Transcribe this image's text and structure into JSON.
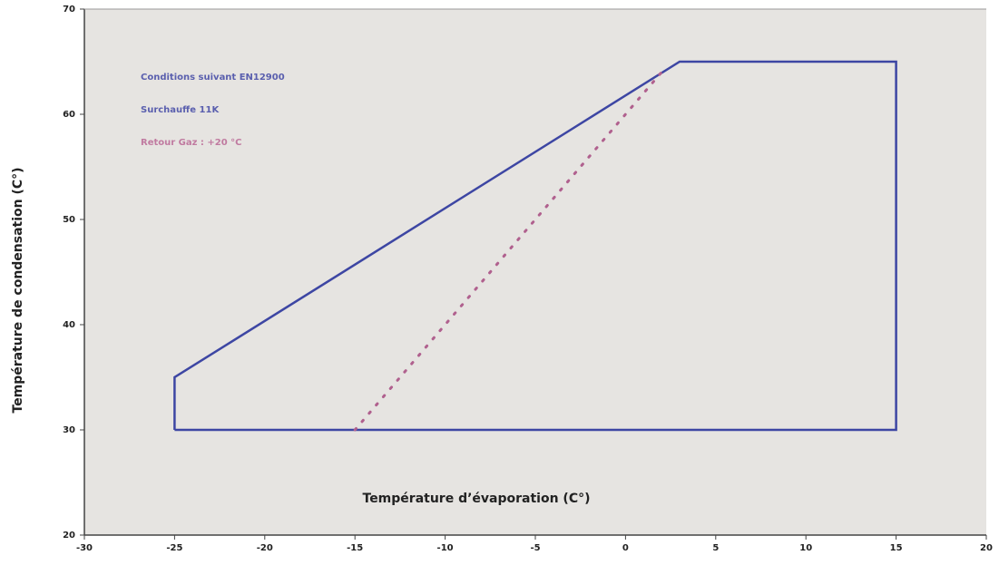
{
  "chart_data": {
    "type": "line",
    "xlabel": "Température d’évaporation (C°)",
    "ylabel": "Température de condensation (C°)",
    "xlim": [
      -30,
      20
    ],
    "xticks": [
      -30,
      -25,
      -20,
      -15,
      -10,
      -5,
      0,
      5,
      10,
      15,
      20
    ],
    "ylim": [
      20,
      70
    ],
    "yticks": [
      20,
      30,
      40,
      50,
      60,
      70
    ],
    "series": [
      {
        "color": "#3d46a3",
        "style": "solid",
        "x": [
          -25,
          -25,
          3,
          15,
          15,
          -25
        ],
        "values": [
          30,
          35,
          65,
          65,
          30,
          30
        ]
      },
      {
        "color": "#b0608e",
        "style": "dotted",
        "x": [
          -15,
          2
        ],
        "values": [
          30,
          64
        ]
      }
    ],
    "annotations": [
      {
        "text": "Conditions suivant EN12900",
        "color": "#5a5fae"
      },
      {
        "text": "Surchauffe 11K",
        "color": "#5a5fae"
      },
      {
        "text": "Retour Gaz : +20 °C",
        "color": "#c07aa0"
      }
    ]
  }
}
